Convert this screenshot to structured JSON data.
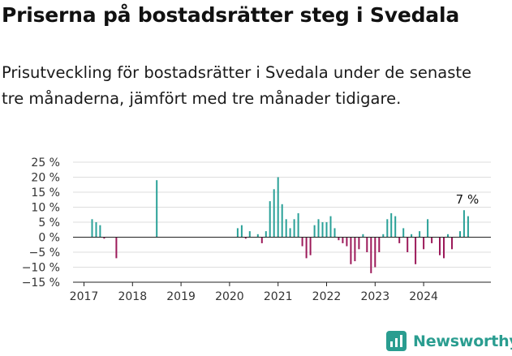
{
  "header": {
    "title": "Priserna på bostadsrätter steg i Svedala",
    "subtitle": "Prisutveckling för bostadsrätter i Svedala under de senaste tre månaderna, jämfört med tre månader tidigare."
  },
  "brand": {
    "name": "Newsworthy",
    "logo_icon": "bar-chart-icon"
  },
  "colors": {
    "positive": "#2aa198",
    "negative": "#9c1a5a",
    "grid": "#dddddd",
    "axis": "#222222",
    "brand": "#2a9d90"
  },
  "chart_data": {
    "type": "bar",
    "title": "",
    "xlabel": "",
    "ylabel": "",
    "ylim": [
      -15,
      25
    ],
    "yticks": [
      25,
      20,
      15,
      10,
      5,
      0,
      -5,
      -10,
      -15
    ],
    "ytick_labels": [
      "25 %",
      "20 %",
      "15 %",
      "10 %",
      "5 %",
      "0 %",
      "−5 %",
      "−10 %",
      "−15 %"
    ],
    "xticks": [
      "2017",
      "2018",
      "2019",
      "2020",
      "2021",
      "2022",
      "2023",
      "2024"
    ],
    "x_unit": "month index from Jan 2017",
    "grid": true,
    "annotation": {
      "text": "7 %",
      "x": 94,
      "y": 9
    },
    "points": [
      {
        "x": 2,
        "y": 6
      },
      {
        "x": 3,
        "y": 5
      },
      {
        "x": 4,
        "y": 4
      },
      {
        "x": 5,
        "y": -0.5
      },
      {
        "x": 8,
        "y": -7
      },
      {
        "x": 18,
        "y": 19
      },
      {
        "x": 38,
        "y": 3
      },
      {
        "x": 39,
        "y": 4
      },
      {
        "x": 40,
        "y": -0.5
      },
      {
        "x": 41,
        "y": 2
      },
      {
        "x": 43,
        "y": 1
      },
      {
        "x": 44,
        "y": -2
      },
      {
        "x": 45,
        "y": 2
      },
      {
        "x": 46,
        "y": 12
      },
      {
        "x": 47,
        "y": 16
      },
      {
        "x": 48,
        "y": 20
      },
      {
        "x": 49,
        "y": 11
      },
      {
        "x": 50,
        "y": 6
      },
      {
        "x": 51,
        "y": 3
      },
      {
        "x": 52,
        "y": 6
      },
      {
        "x": 53,
        "y": 8
      },
      {
        "x": 54,
        "y": -3
      },
      {
        "x": 55,
        "y": -7
      },
      {
        "x": 56,
        "y": -6
      },
      {
        "x": 57,
        "y": 4
      },
      {
        "x": 58,
        "y": 6
      },
      {
        "x": 59,
        "y": 5
      },
      {
        "x": 60,
        "y": 5
      },
      {
        "x": 61,
        "y": 7
      },
      {
        "x": 62,
        "y": 3
      },
      {
        "x": 63,
        "y": -1
      },
      {
        "x": 64,
        "y": -2
      },
      {
        "x": 65,
        "y": -3
      },
      {
        "x": 66,
        "y": -9
      },
      {
        "x": 67,
        "y": -8
      },
      {
        "x": 68,
        "y": -4
      },
      {
        "x": 69,
        "y": 1
      },
      {
        "x": 70,
        "y": -5
      },
      {
        "x": 71,
        "y": -12
      },
      {
        "x": 72,
        "y": -10
      },
      {
        "x": 73,
        "y": -5
      },
      {
        "x": 74,
        "y": 1
      },
      {
        "x": 75,
        "y": 6
      },
      {
        "x": 76,
        "y": 8
      },
      {
        "x": 77,
        "y": 7
      },
      {
        "x": 78,
        "y": -2
      },
      {
        "x": 79,
        "y": 3
      },
      {
        "x": 80,
        "y": -5
      },
      {
        "x": 81,
        "y": 1
      },
      {
        "x": 82,
        "y": -9
      },
      {
        "x": 83,
        "y": 2
      },
      {
        "x": 84,
        "y": -4
      },
      {
        "x": 85,
        "y": 6
      },
      {
        "x": 86,
        "y": -2
      },
      {
        "x": 88,
        "y": -6
      },
      {
        "x": 89,
        "y": -7
      },
      {
        "x": 90,
        "y": 1
      },
      {
        "x": 91,
        "y": -4
      },
      {
        "x": 93,
        "y": 2
      },
      {
        "x": 94,
        "y": 9
      },
      {
        "x": 95,
        "y": 7
      }
    ]
  }
}
